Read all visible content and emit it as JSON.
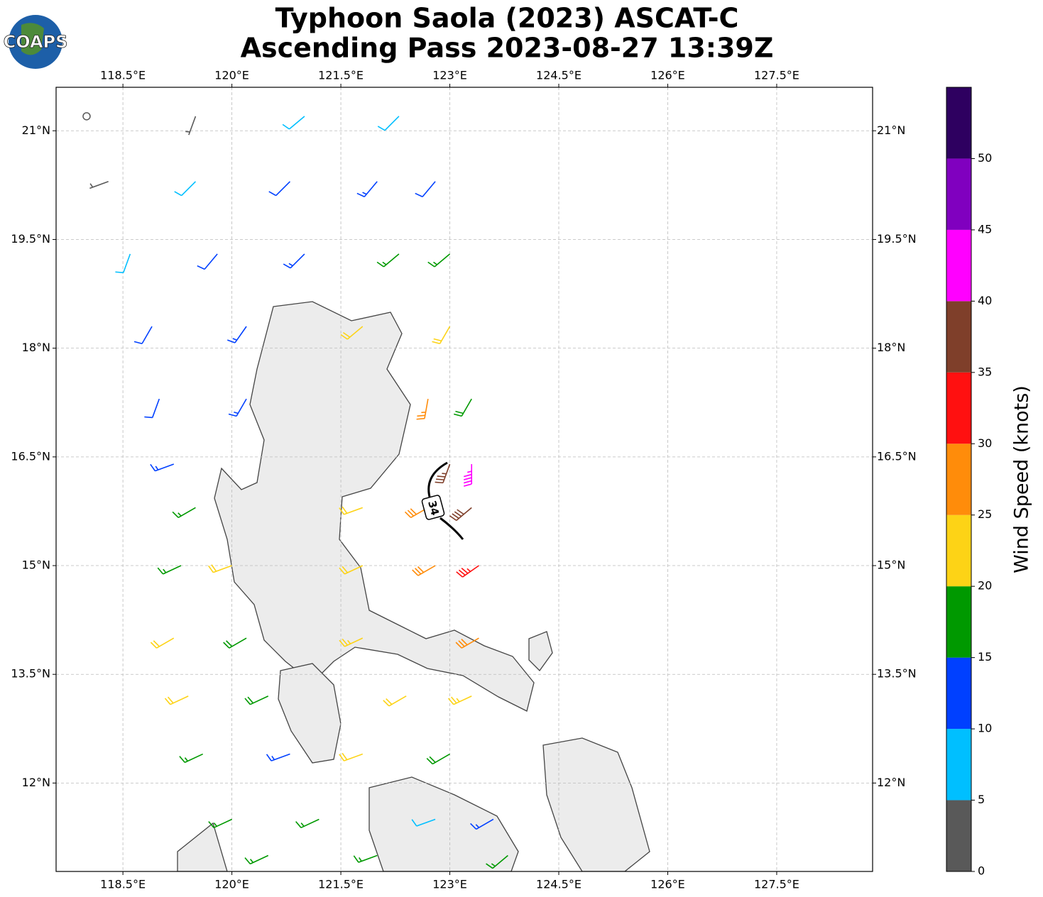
{
  "chart_data": {
    "type": "wind-barb-map",
    "title": [
      "Typhoon Saola (2023) ASCAT-C",
      "Ascending Pass 2023-08-27 13:39Z"
    ],
    "logo_text": "COAPS",
    "annotation": "34",
    "xlim": [
      117.58,
      128.82
    ],
    "ylim": [
      10.78,
      21.6
    ],
    "xticks": [
      {
        "value": 118.5,
        "label": "118.5°E"
      },
      {
        "value": 120,
        "label": "120°E"
      },
      {
        "value": 121.5,
        "label": "121.5°E"
      },
      {
        "value": 123,
        "label": "123°E"
      },
      {
        "value": 124.5,
        "label": "124.5°E"
      },
      {
        "value": 126,
        "label": "126°E"
      },
      {
        "value": 127.5,
        "label": "127.5°E"
      }
    ],
    "yticks": [
      {
        "value": 12,
        "label": "12°N"
      },
      {
        "value": 13.5,
        "label": "13.5°N"
      },
      {
        "value": 15,
        "label": "15°N"
      },
      {
        "value": 16.5,
        "label": "16.5°N"
      },
      {
        "value": 18,
        "label": "18°N"
      },
      {
        "value": 19.5,
        "label": "19.5°N"
      },
      {
        "value": 21,
        "label": "21°N"
      }
    ],
    "grid": true,
    "barbs": {
      "lon": [
        118.0,
        119.5,
        121.0,
        122.3,
        118.3,
        119.5,
        120.8,
        122.0,
        122.8,
        118.6,
        119.8,
        121.0,
        122.3,
        123.0,
        118.9,
        120.2,
        121.8,
        123.0,
        119.0,
        120.2,
        122.7,
        123.3,
        119.2,
        123.0,
        123.3,
        119.5,
        121.8,
        122.7,
        123.3,
        119.3,
        120.0,
        121.8,
        122.8,
        123.4,
        119.2,
        120.2,
        121.8,
        123.4,
        119.4,
        120.5,
        122.4,
        123.3,
        119.6,
        120.8,
        121.8,
        123.0,
        120.0,
        121.2,
        122.8,
        123.6,
        120.5,
        122.0,
        123.8
      ],
      "lat": [
        21.2,
        21.2,
        21.2,
        21.2,
        20.3,
        20.3,
        20.3,
        20.3,
        20.3,
        19.3,
        19.3,
        19.3,
        19.3,
        19.3,
        18.3,
        18.3,
        18.3,
        18.3,
        17.3,
        17.3,
        17.3,
        17.3,
        16.4,
        16.4,
        16.4,
        15.8,
        15.8,
        15.8,
        15.8,
        15.0,
        15.0,
        15.0,
        15.0,
        15.0,
        14.0,
        14.0,
        14.0,
        14.0,
        13.2,
        13.2,
        13.2,
        13.2,
        12.4,
        12.4,
        12.4,
        12.4,
        11.5,
        11.5,
        11.5,
        11.5,
        11.0,
        11.0,
        11.0
      ],
      "speed": [
        2,
        4,
        8,
        8,
        3,
        9,
        12,
        13,
        12,
        8,
        12,
        13,
        16,
        17,
        11,
        13,
        21,
        22,
        12,
        13,
        27,
        18,
        13,
        36,
        43,
        17,
        22,
        28,
        38,
        17,
        22,
        22,
        29,
        33,
        22,
        18,
        23,
        28,
        22,
        18,
        21,
        23,
        17,
        13,
        22,
        18,
        17,
        17,
        8,
        13,
        16,
        16,
        17
      ],
      "direction": [
        0,
        200,
        230,
        225,
        250,
        225,
        225,
        220,
        220,
        200,
        220,
        225,
        230,
        230,
        210,
        215,
        230,
        210,
        200,
        210,
        190,
        210,
        250,
        200,
        180,
        240,
        250,
        240,
        230,
        245,
        250,
        245,
        240,
        235,
        240,
        240,
        245,
        240,
        245,
        245,
        240,
        245,
        245,
        250,
        250,
        240,
        245,
        245,
        250,
        240,
        245,
        250,
        230
      ]
    },
    "colorbar": {
      "label": "Wind Speed (knots)",
      "bounds": [
        0,
        5,
        10,
        15,
        20,
        25,
        30,
        35,
        40,
        45,
        50,
        55
      ],
      "colors": [
        "#595959",
        "#00bfff",
        "#0040ff",
        "#009900",
        "#fdd316",
        "#ff8c0a",
        "#ff1010",
        "#7f3f2a",
        "#ff00ff",
        "#8000bf",
        "#2e0060"
      ],
      "ticks": [
        0,
        5,
        10,
        15,
        20,
        25,
        30,
        35,
        40,
        45,
        50
      ]
    }
  }
}
